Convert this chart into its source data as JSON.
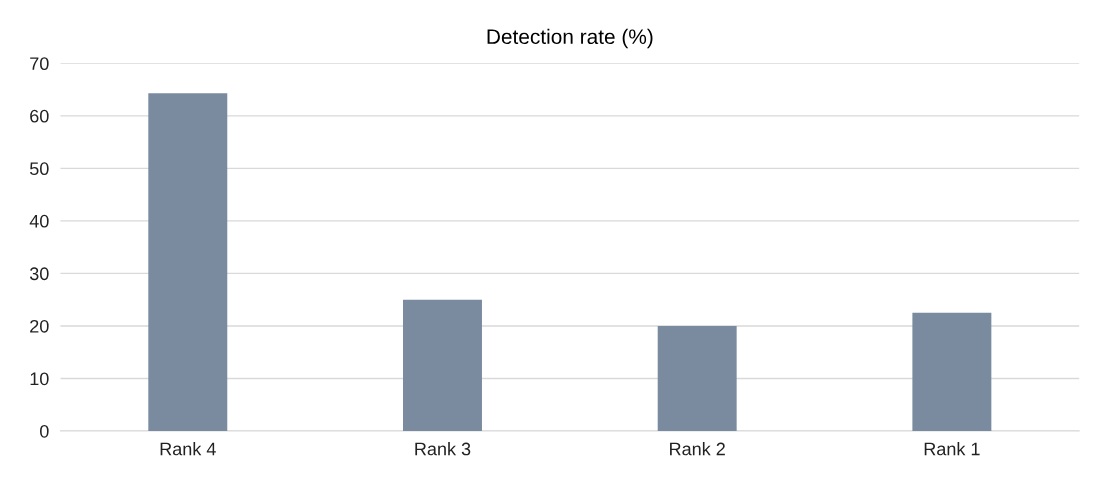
{
  "chart_data": {
    "type": "bar",
    "title": "Detection rate (%)",
    "categories": [
      "Rank 4",
      "Rank 3",
      "Rank 2",
      "Rank 1"
    ],
    "values": [
      64.3,
      25.0,
      20.0,
      22.5
    ],
    "color": "#7a8ba0",
    "ylim": [
      0,
      70
    ],
    "yticks": [
      0,
      10,
      20,
      30,
      40,
      50,
      60,
      70
    ],
    "grid": "y",
    "legend": false
  }
}
